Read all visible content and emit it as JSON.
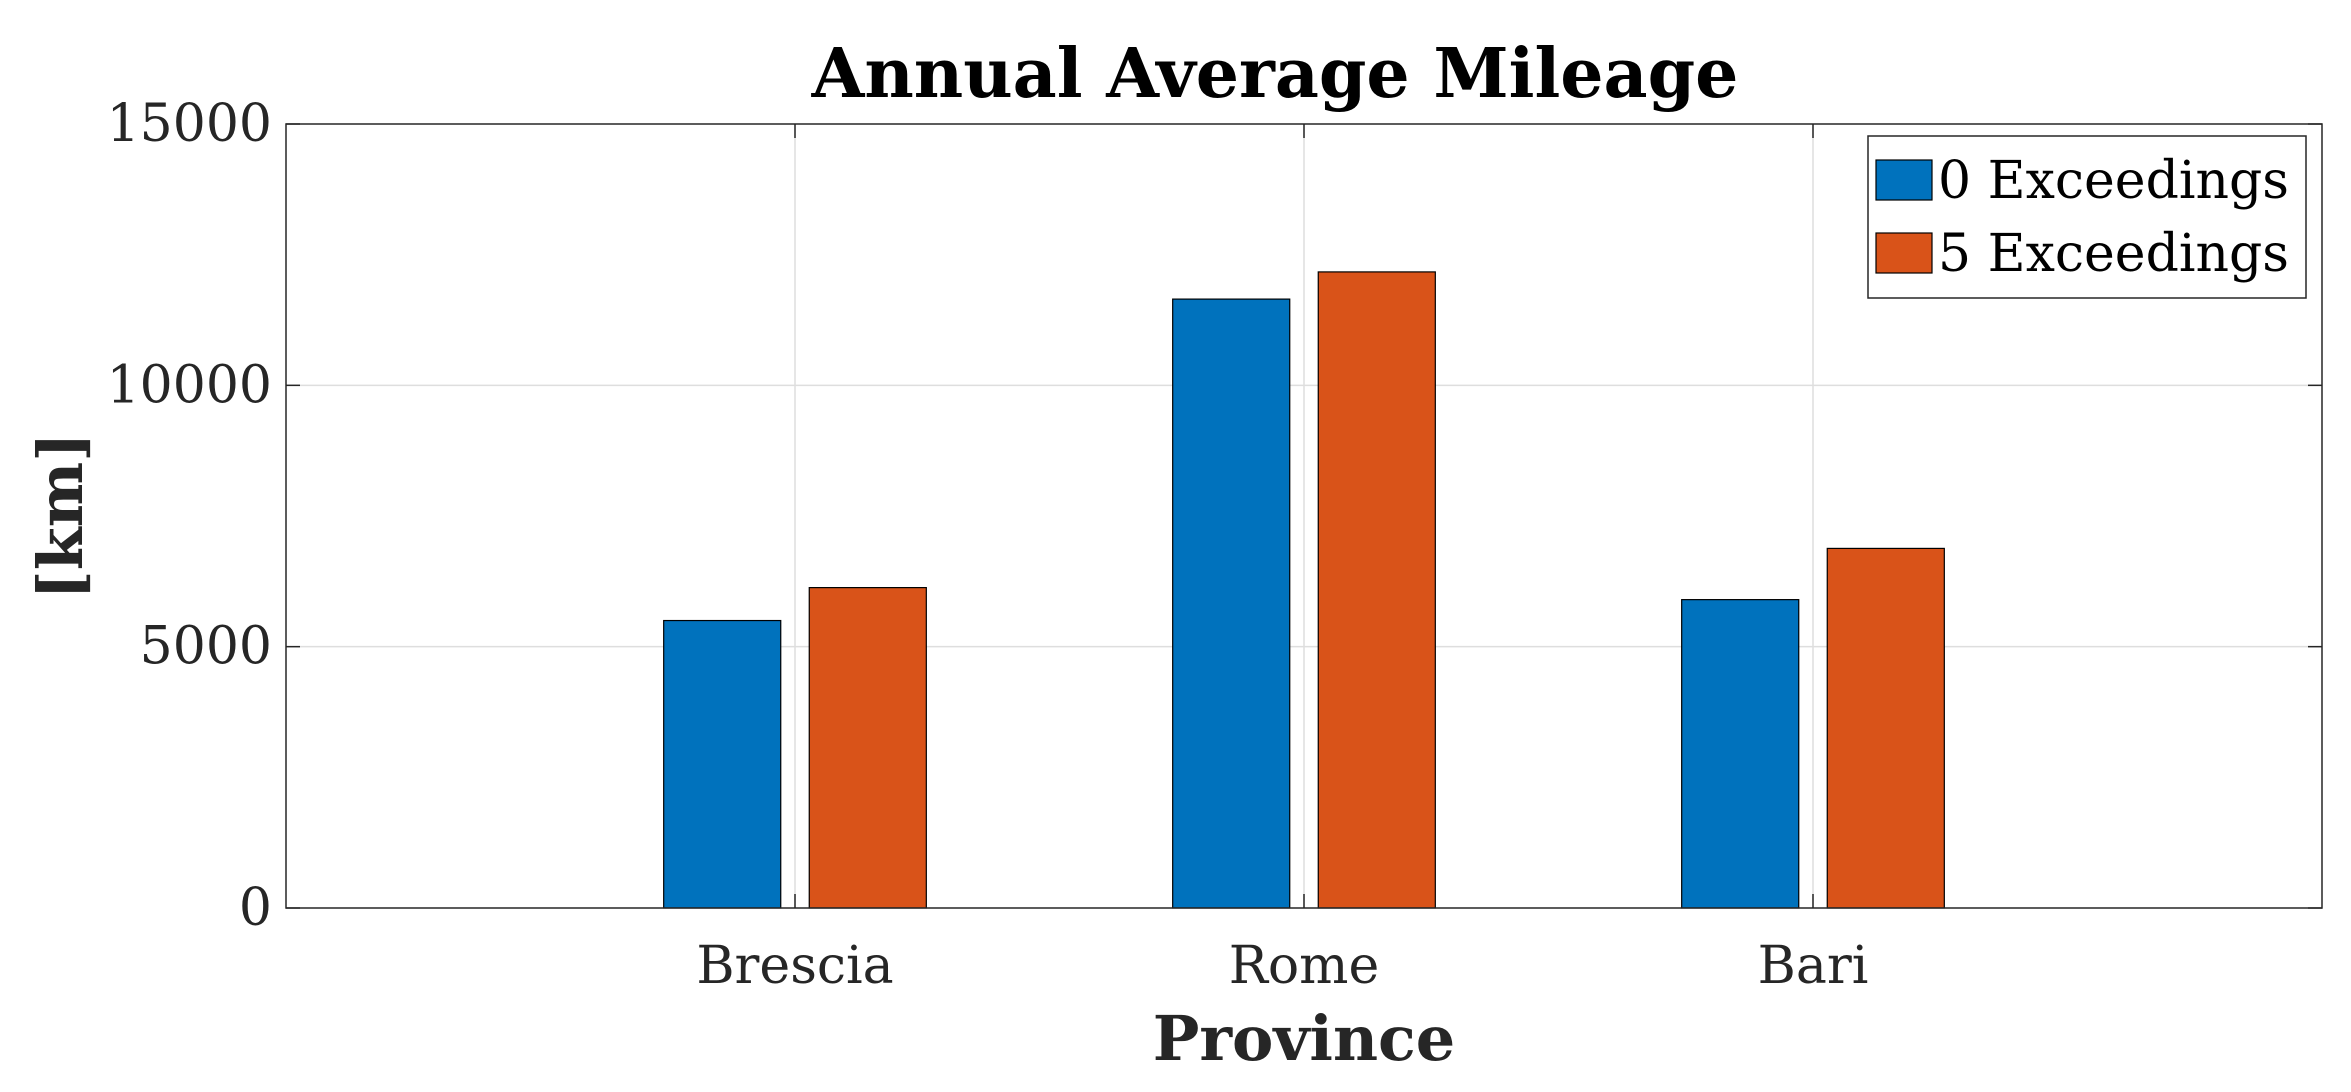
{
  "chart_data": {
    "type": "bar",
    "title": "Annual Average Mileage",
    "xlabel": "Province",
    "ylabel": "[km]",
    "categories": [
      "Brescia",
      "Rome",
      "Bari"
    ],
    "series": [
      {
        "name": "0 Exceedings",
        "color": "#0072BD",
        "values": [
          5500,
          11650,
          5900
        ]
      },
      {
        "name": "5 Exceedings",
        "color": "#D95319",
        "values": [
          6130,
          12170,
          6880
        ]
      }
    ],
    "ylim": [
      0,
      15000
    ],
    "yticks": [
      0,
      5000,
      10000,
      15000
    ],
    "grid": true,
    "legend_position": "top-right"
  }
}
